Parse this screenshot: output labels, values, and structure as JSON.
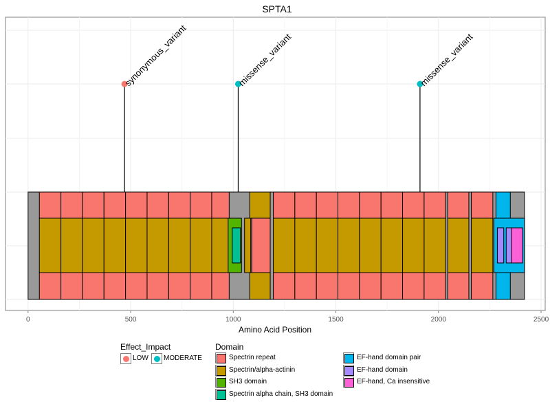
{
  "chart_data": {
    "type": "lollipop",
    "title": "SPTA1",
    "xlabel": "Amino Acid Position",
    "ylabel": "",
    "xlim": [
      -110,
      2520
    ],
    "x_ticks": [
      0,
      500,
      1000,
      1500,
      2000,
      2500
    ],
    "grid": true,
    "legend_position": "bottom",
    "protein_length": 2419,
    "colors": {
      "backbone": "#999999",
      "LOW": "#F8766D",
      "MODERATE": "#00BFC4"
    },
    "domains": [
      {
        "name": "Spectrin repeat",
        "color": "#F8766D"
      },
      {
        "name": "Spectrin/alpha-actinin",
        "color": "#C49A00"
      },
      {
        "name": "SH3 domain",
        "color": "#53B400"
      },
      {
        "name": "Spectrin alpha chain, SH3 domain",
        "color": "#00C094"
      },
      {
        "name": "EF-hand domain pair",
        "color": "#00B6EB"
      },
      {
        "name": "EF-hand domain",
        "color": "#A58AFF"
      },
      {
        "name": "EF-hand, Ca insensitive",
        "color": "#FB61D7"
      }
    ],
    "features": [
      {
        "domain": "Spectrin repeat",
        "tier": "outer",
        "segments": [
          [
            55,
            160
          ],
          [
            160,
            265
          ],
          [
            265,
            370
          ],
          [
            370,
            475
          ],
          [
            475,
            580
          ],
          [
            580,
            685
          ],
          [
            685,
            790
          ],
          [
            790,
            895
          ],
          [
            895,
            980
          ],
          [
            1195,
            1300
          ],
          [
            1300,
            1405
          ],
          [
            1405,
            1510
          ],
          [
            1510,
            1615
          ],
          [
            1615,
            1720
          ],
          [
            1720,
            1825
          ],
          [
            1825,
            1930
          ],
          [
            1930,
            2035
          ],
          [
            2045,
            2148
          ],
          [
            2160,
            2265
          ]
        ]
      },
      {
        "domain": "Spectrin repeat",
        "tier": "middle",
        "segments": [
          [
            1090,
            1180
          ]
        ]
      },
      {
        "domain": "Spectrin/alpha-actinin",
        "tier": "outer",
        "segments": [
          [
            1080,
            1180
          ]
        ]
      },
      {
        "domain": "Spectrin/alpha-actinin",
        "tier": "middle",
        "segments": [
          [
            55,
            160
          ],
          [
            160,
            265
          ],
          [
            265,
            370
          ],
          [
            370,
            475
          ],
          [
            475,
            580
          ],
          [
            580,
            685
          ],
          [
            685,
            790
          ],
          [
            790,
            895
          ],
          [
            895,
            980
          ],
          [
            1055,
            1085
          ],
          [
            1195,
            1300
          ],
          [
            1300,
            1405
          ],
          [
            1405,
            1510
          ],
          [
            1510,
            1615
          ],
          [
            1615,
            1720
          ],
          [
            1720,
            1825
          ],
          [
            1825,
            1930
          ],
          [
            1930,
            2035
          ],
          [
            2045,
            2148
          ],
          [
            2160,
            2265
          ]
        ]
      },
      {
        "domain": "SH3 domain",
        "tier": "middle",
        "segments": [
          [
            975,
            1040
          ]
        ]
      },
      {
        "domain": "Spectrin alpha chain, SH3 domain",
        "tier": "inner",
        "segments": [
          [
            995,
            1035
          ]
        ]
      },
      {
        "domain": "EF-hand domain pair",
        "tier": "outer",
        "segments": [
          [
            2280,
            2350
          ]
        ]
      },
      {
        "domain": "EF-hand domain pair",
        "tier": "middle",
        "segments": [
          [
            2270,
            2419
          ]
        ]
      },
      {
        "domain": "EF-hand domain",
        "tier": "inner",
        "segments": [
          [
            2287,
            2318
          ],
          [
            2330,
            2365
          ]
        ]
      },
      {
        "domain": "EF-hand, Ca insensitive",
        "tier": "inner",
        "segments": [
          [
            2355,
            2410
          ]
        ]
      }
    ],
    "variants": [
      {
        "position": 470,
        "label": "synonymous_variant",
        "impact": "LOW"
      },
      {
        "position": 1024,
        "label": "missense_variant",
        "impact": "MODERATE"
      },
      {
        "position": 1910,
        "label": "missense_variant",
        "impact": "MODERATE"
      }
    ]
  },
  "legend": {
    "effect_title": "Effect_Impact",
    "effect_items": [
      {
        "label": "LOW",
        "color": "#F8766D"
      },
      {
        "label": "MODERATE",
        "color": "#00BFC4"
      }
    ],
    "domain_title": "Domain",
    "domain_items": [
      {
        "label": "Spectrin repeat",
        "color": "#F8766D"
      },
      {
        "label": "Spectrin/alpha-actinin",
        "color": "#C49A00"
      },
      {
        "label": "SH3 domain",
        "color": "#53B400"
      },
      {
        "label": "Spectrin alpha chain, SH3 domain",
        "color": "#00C094"
      },
      {
        "label": "EF-hand domain pair",
        "color": "#00B6EB"
      },
      {
        "label": "EF-hand domain",
        "color": "#A58AFF"
      },
      {
        "label": "EF-hand, Ca insensitive",
        "color": "#FB61D7"
      }
    ]
  }
}
